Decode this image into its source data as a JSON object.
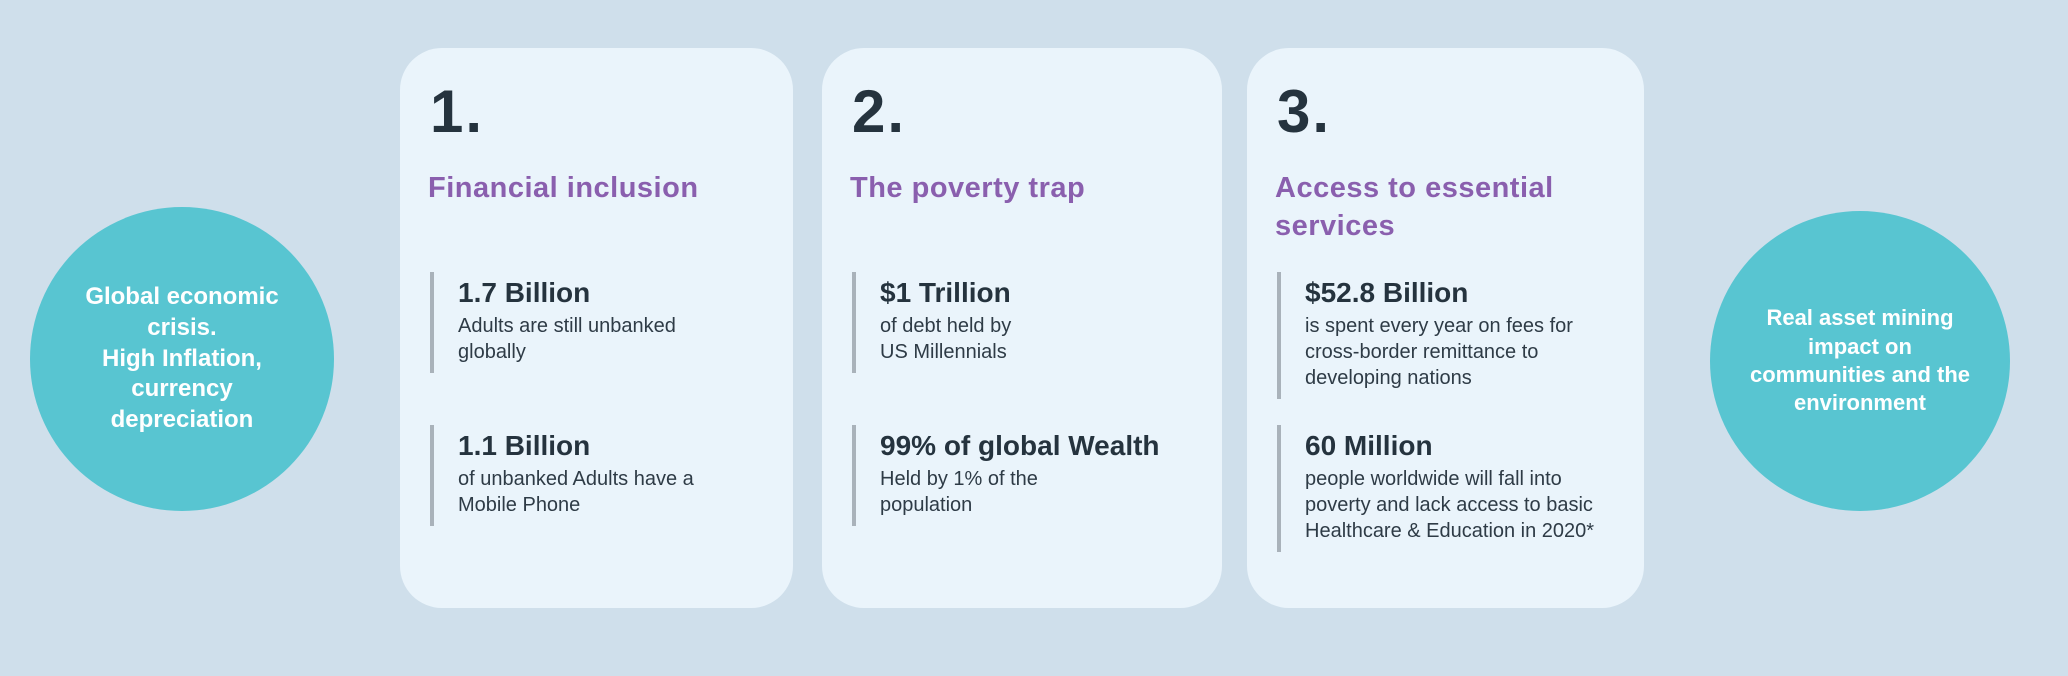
{
  "colors": {
    "background": "#cfdfeb",
    "card_background": "#eaf4fb",
    "circle_teal": "#58c5d1",
    "heading_purple": "#8a5fae",
    "text_dark": "#25333e",
    "stat_bar_gray": "#a9b2ba",
    "circle_text_white": "#ffffff"
  },
  "left_circle": {
    "text": "Global economic\ncrisis.\nHigh Inflation,\ncurrency\ndepreciation"
  },
  "right_circle": {
    "text": "Real asset  mining\nimpact on\ncommunities and the\nenvironment"
  },
  "cards": [
    {
      "number": "1.",
      "title": "Financial inclusion",
      "stats": [
        {
          "value": "1.7 Billion",
          "description": "Adults are still unbanked\nglobally"
        },
        {
          "value": "1.1 Billion",
          "description": "of unbanked Adults have a\nMobile Phone"
        }
      ]
    },
    {
      "number": "2.",
      "title": "The poverty trap",
      "stats": [
        {
          "value": "$1 Trillion",
          "description": "of debt held by\nUS Millennials"
        },
        {
          "value": "99% of global Wealth",
          "description": "Held by 1% of the\npopulation"
        }
      ]
    },
    {
      "number": "3.",
      "title": "Access to essential\nservices",
      "stats": [
        {
          "value": "$52.8 Billion",
          "description": "is spent every year on fees for\ncross-border remittance to\ndeveloping nations"
        },
        {
          "value": "60 Million",
          "description": "people worldwide will fall into\npoverty and lack access to basic\nHealthcare & Education in 2020*"
        }
      ]
    }
  ]
}
